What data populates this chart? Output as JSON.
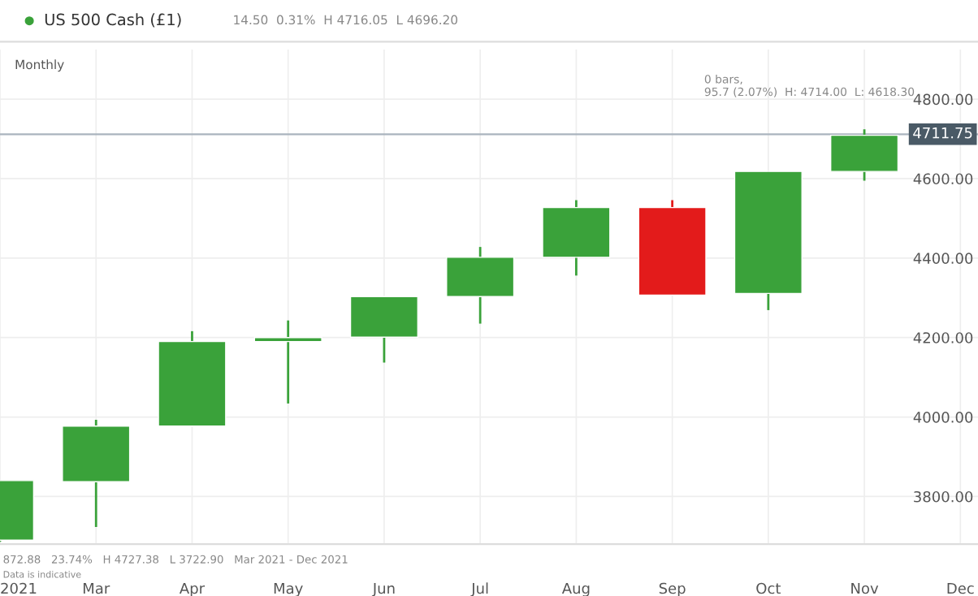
{
  "chart_data": {
    "type": "candlestick",
    "title": "US 500 Cash (£1)",
    "subtitle": "14.50  0.31%  H 4716.05  L 4696.20",
    "categories": [
      "2021",
      "Mar",
      "Apr",
      "May",
      "Jun",
      "Jul",
      "Aug",
      "Sep",
      "Oct",
      "Nov",
      "Dec"
    ],
    "ohlc": [
      [
        3690,
        3840,
        3686,
        3840
      ],
      [
        3837,
        3993,
        3723,
        3977
      ],
      [
        3977,
        4216,
        3977,
        4190
      ],
      [
        4190,
        4243,
        4034,
        4200
      ],
      [
        4201,
        4303,
        4137,
        4303
      ],
      [
        4303,
        4428,
        4235,
        4402
      ],
      [
        4402,
        4546,
        4356,
        4527
      ],
      [
        4527,
        4546,
        4307,
        4307
      ],
      [
        4311,
        4618,
        4269,
        4618
      ],
      [
        4618,
        4724,
        4595,
        4709
      ],
      null
    ],
    "colors": [
      "#3aa23a",
      "#3aa23a",
      "#3aa23a",
      "#3aa23a",
      "#3aa23a",
      "#3aa23a",
      "#3aa23a",
      "#e31b1b",
      "#3aa23a",
      "#3aa23a",
      null
    ],
    "ylim": [
      3680,
      4925
    ],
    "yticks": [
      {
        "value": 3800,
        "label": "3800.00"
      },
      {
        "value": 4000,
        "label": "4000.00"
      },
      {
        "value": 4200,
        "label": "4200.00"
      },
      {
        "value": 4400,
        "label": "4400.00"
      },
      {
        "value": 4600,
        "label": "4600.00"
      },
      {
        "value": 4800,
        "label": "4800.00"
      }
    ],
    "ref_lines": [
      {
        "axis": "y",
        "value": 4711.75,
        "label": "4711.75",
        "color": "#aab4be"
      }
    ],
    "grid": true,
    "annotations": [
      "Monthly",
      "0 bars,\n95.7 (2.07%)  H: 4714.00  L: 4618.30",
      "872.88   23.74%   H 4727.38   L 3722.90   Mar 2021 - Dec 2021",
      "Data is indicative"
    ]
  }
}
